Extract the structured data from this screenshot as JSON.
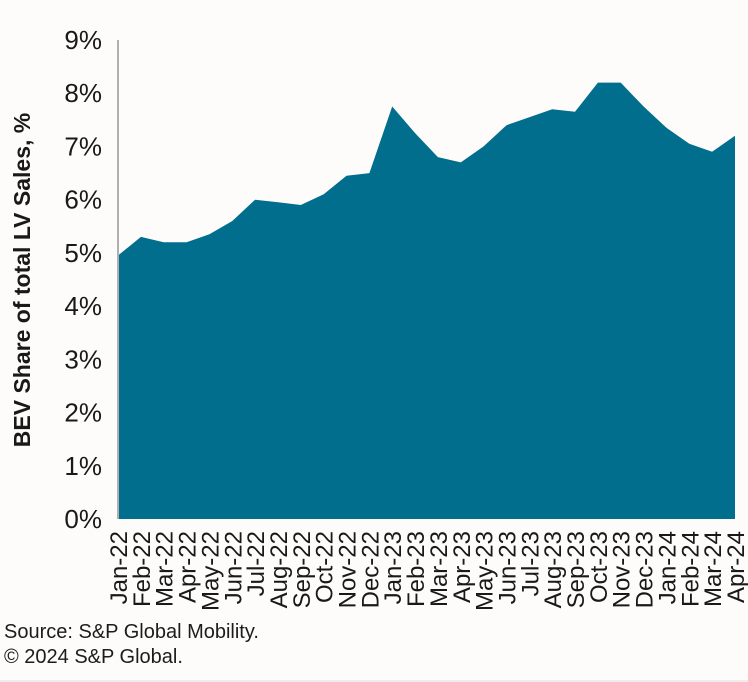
{
  "chart_data": {
    "type": "area",
    "ylabel": "BEV Share of total LV Sales, %",
    "xlabel": "",
    "categories": [
      "Jan-22",
      "Feb-22",
      "Mar-22",
      "Apr-22",
      "May-22",
      "Jun-22",
      "Jul-22",
      "Aug-22",
      "Sep-22",
      "Oct-22",
      "Nov-22",
      "Dec-22",
      "Jan-23",
      "Feb-23",
      "Mar-23",
      "Apr-23",
      "May-23",
      "Jun-23",
      "Jul-23",
      "Aug-23",
      "Sep-23",
      "Oct-23",
      "Nov-23",
      "Dec-23",
      "Jan-24",
      "Feb-24",
      "Mar-24",
      "Apr-24"
    ],
    "series": [
      {
        "name": "BEV share of total LV sales",
        "values": [
          4.95,
          5.3,
          5.2,
          5.2,
          5.35,
          5.6,
          6.0,
          5.95,
          5.9,
          6.1,
          6.45,
          6.5,
          7.75,
          7.25,
          6.8,
          6.7,
          7.0,
          7.4,
          7.55,
          7.7,
          7.65,
          8.2,
          8.2,
          7.75,
          7.35,
          7.05,
          6.9,
          7.2
        ]
      }
    ],
    "ylim": [
      0,
      9
    ],
    "ytick_labels": [
      "0%",
      "1%",
      "2%",
      "3%",
      "4%",
      "5%",
      "6%",
      "7%",
      "8%",
      "9%"
    ],
    "grid": false,
    "legend": false,
    "area_color": "#006e8c",
    "axis_line_color": "#b0b0b0",
    "text_color": "#191919"
  },
  "footer": {
    "source_line": "Source: S&P Global Mobility.",
    "copyright_line": "© 2024 S&P Global."
  }
}
